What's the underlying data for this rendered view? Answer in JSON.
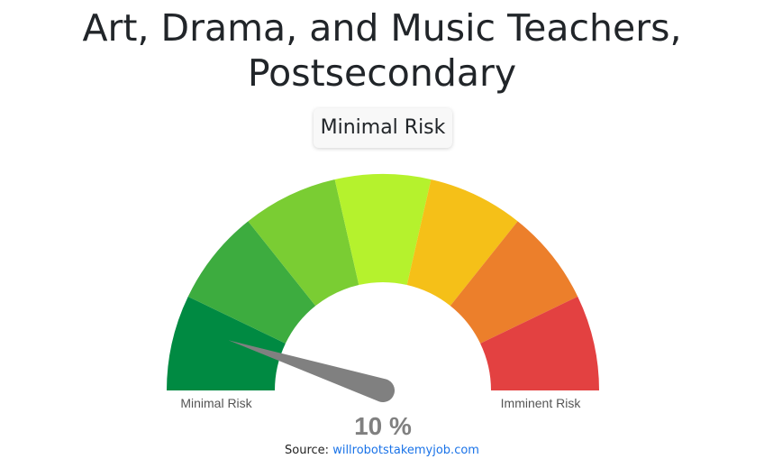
{
  "title": "Art, Drama, and Music Teachers, Postsecondary",
  "risk_badge": "Minimal Risk",
  "chart_data": {
    "type": "gauge",
    "value": 10,
    "value_label": "10 %",
    "range": [
      0,
      100
    ],
    "min_label": "Minimal Risk",
    "max_label": "Imminent Risk",
    "segment_colors": [
      "#008a42",
      "#3dac3f",
      "#7acd33",
      "#b5f22d",
      "#f5c018",
      "#ec7f2b",
      "#e34141"
    ],
    "needle_color": "#808080"
  },
  "source": {
    "label": "Source:",
    "link": "willrobotstakemyjob.com"
  }
}
